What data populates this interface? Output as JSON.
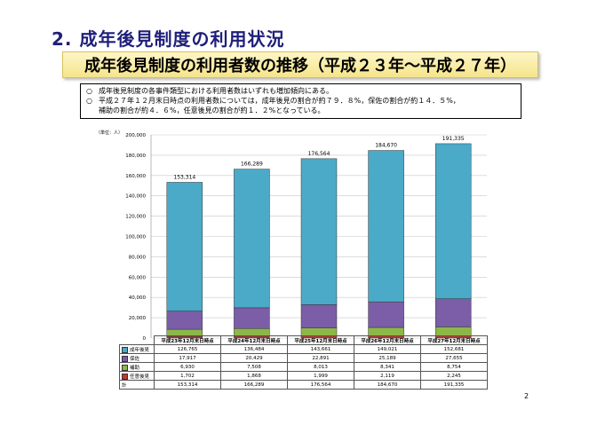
{
  "section_title": "2. 成年後見制度の利用状況",
  "banner_title": "成年後見制度の利用者数の推移（平成２３年～平成２７年）",
  "notes": [
    {
      "bullet": "○",
      "text": "成年後見制度の各事件類型における利用者数はいずれも増加傾向にある。"
    },
    {
      "bullet": "○",
      "text": "平成２７年１２月末日時点の利用者数については，成年後見の割合が約７９．８%，保佐の割合が約１４．５%，",
      "cont": "補助の割合が約４．６%，任意後見の割合が約１．２%となっている。"
    }
  ],
  "unit_label": "（単位：人）",
  "page_number": "2",
  "chart_data": {
    "type": "bar",
    "stacked": true,
    "categories": [
      "平成23年12月末日時点",
      "平成24年12月末日時点",
      "平成25年12月末日時点",
      "平成26年12月末日時点",
      "平成27年12月末日時点"
    ],
    "series": [
      {
        "name": "任意後見",
        "color": "#c0392b",
        "values": [
          1702,
          1868,
          1999,
          2119,
          2245
        ]
      },
      {
        "name": "補助",
        "color": "#8cb84a",
        "values": [
          6930,
          7508,
          8013,
          8341,
          8754
        ]
      },
      {
        "name": "保佐",
        "color": "#7b5ea7",
        "values": [
          17917,
          20429,
          22891,
          25189,
          27655
        ]
      },
      {
        "name": "成年後見",
        "color": "#4aaac8",
        "values": [
          126765,
          136484,
          143661,
          149021,
          152681
        ]
      }
    ],
    "totals": [
      153314,
      166289,
      176564,
      184670,
      191335
    ],
    "total_labels": [
      "153,314",
      "166,289",
      "176,564",
      "184,670",
      "191,335"
    ],
    "total_row_label": "計",
    "ylim": [
      0,
      200000
    ],
    "yticks": [
      "0",
      "20,000",
      "40,000",
      "60,000",
      "80,000",
      "100,000",
      "120,000",
      "140,000",
      "160,000",
      "180,000",
      "200,000"
    ],
    "table_rows": [
      {
        "name": "成年後見",
        "color": "#4aaac8",
        "cells": [
          "126,765",
          "136,484",
          "143,661",
          "149,021",
          "152,681"
        ]
      },
      {
        "name": "保佐",
        "color": "#7b5ea7",
        "cells": [
          "17,917",
          "20,429",
          "22,891",
          "25,189",
          "27,655"
        ]
      },
      {
        "name": "補助",
        "color": "#8cb84a",
        "cells": [
          "6,930",
          "7,508",
          "8,013",
          "8,341",
          "8,754"
        ]
      },
      {
        "name": "任意後見",
        "color": "#c0392b",
        "cells": [
          "1,702",
          "1,868",
          "1,999",
          "2,119",
          "2,245"
        ]
      }
    ],
    "grid": true,
    "legend": "table"
  }
}
